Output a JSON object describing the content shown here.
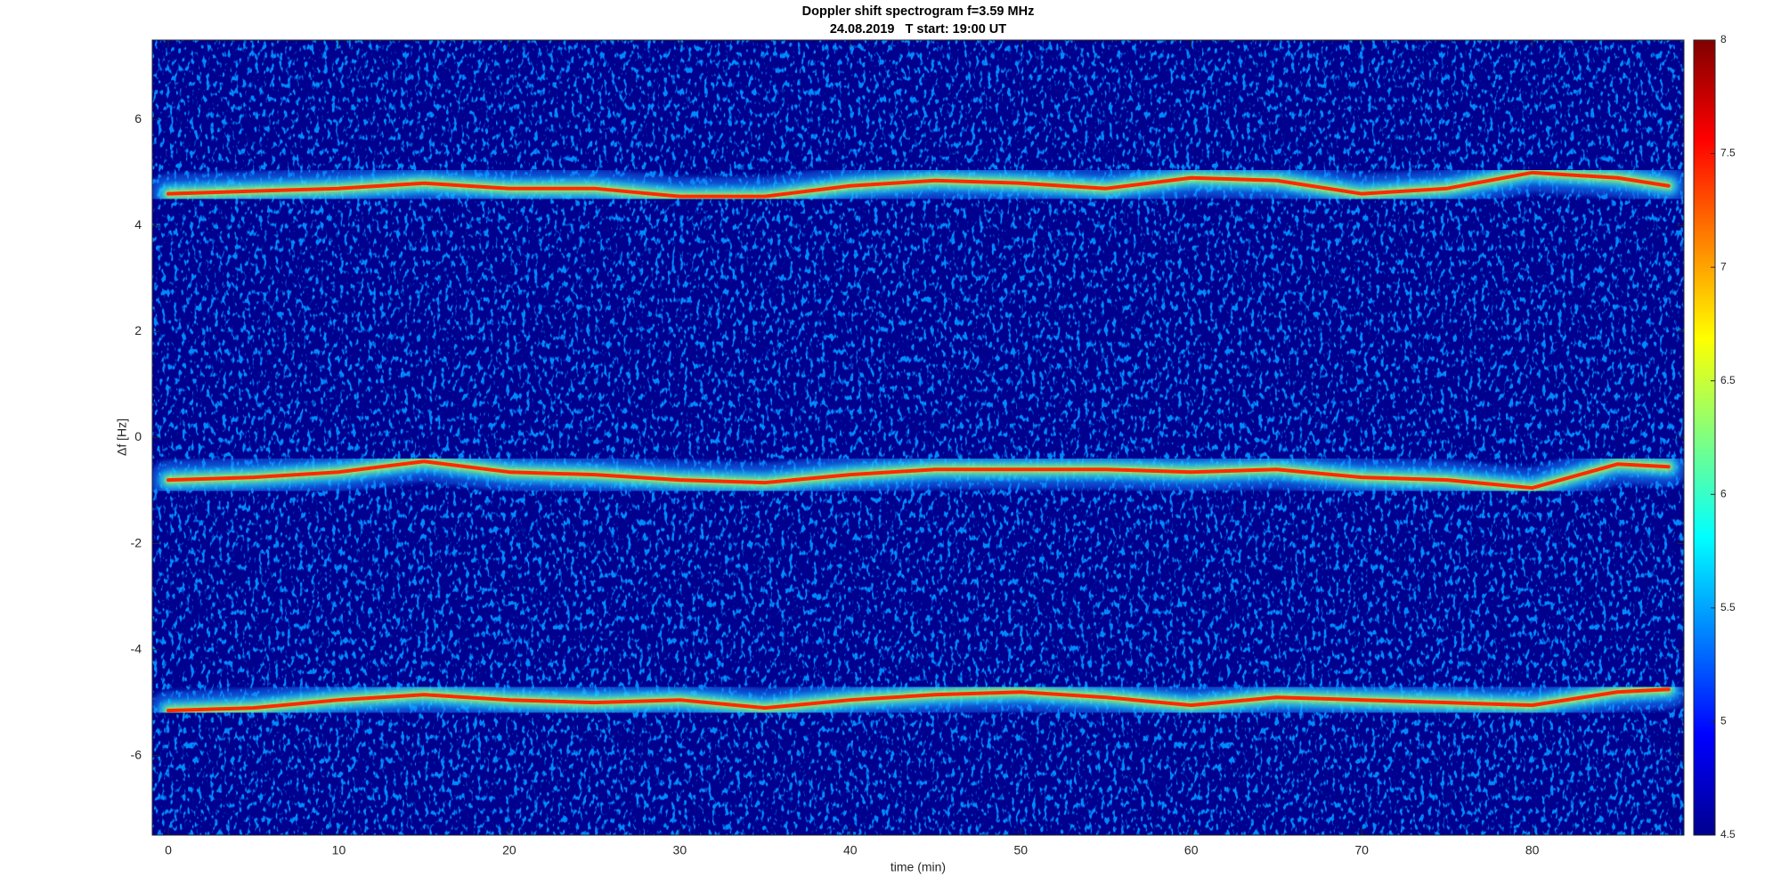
{
  "chart_data": {
    "type": "spectrogram",
    "title": "Doppler shift spectrogram f=3.59 MHz",
    "subtitle": "24.08.2019   T start: 19:00 UT",
    "xlabel": "time (min)",
    "ylabel": "Δf [Hz]",
    "xlim": [
      -0.94,
      88.9
    ],
    "ylim": [
      -7.5,
      7.5
    ],
    "xticks": [
      0,
      10,
      20,
      30,
      40,
      50,
      60,
      70,
      80
    ],
    "yticks": [
      -6,
      -4,
      -2,
      0,
      2,
      4,
      6
    ],
    "colormap": "jet",
    "clim": [
      4.5,
      8
    ],
    "cticks": [
      4.5,
      5,
      5.5,
      6,
      6.5,
      7,
      7.5,
      8
    ],
    "x": [
      0,
      5,
      10,
      15,
      20,
      25,
      30,
      35,
      40,
      45,
      50,
      55,
      60,
      65,
      70,
      75,
      80,
      85,
      88
    ],
    "series": [
      {
        "color": "#ff2a00",
        "values": [
          4.6,
          4.65,
          4.7,
          4.8,
          4.7,
          4.7,
          4.55,
          4.55,
          4.75,
          4.85,
          4.8,
          4.7,
          4.9,
          4.85,
          4.6,
          4.7,
          5.0,
          4.9,
          4.75
        ]
      },
      {
        "color": "#ff2a00",
        "values": [
          -0.8,
          -0.75,
          -0.65,
          -0.45,
          -0.65,
          -0.7,
          -0.8,
          -0.85,
          -0.7,
          -0.6,
          -0.6,
          -0.6,
          -0.65,
          -0.6,
          -0.75,
          -0.8,
          -0.95,
          -0.5,
          -0.55
        ]
      },
      {
        "color": "#ff2a00",
        "values": [
          -5.15,
          -5.1,
          -4.95,
          -4.85,
          -4.95,
          -5.0,
          -4.95,
          -5.1,
          -4.95,
          -4.85,
          -4.8,
          -4.9,
          -5.05,
          -4.9,
          -4.95,
          -5.0,
          -5.05,
          -4.8,
          -4.75
        ]
      }
    ]
  }
}
